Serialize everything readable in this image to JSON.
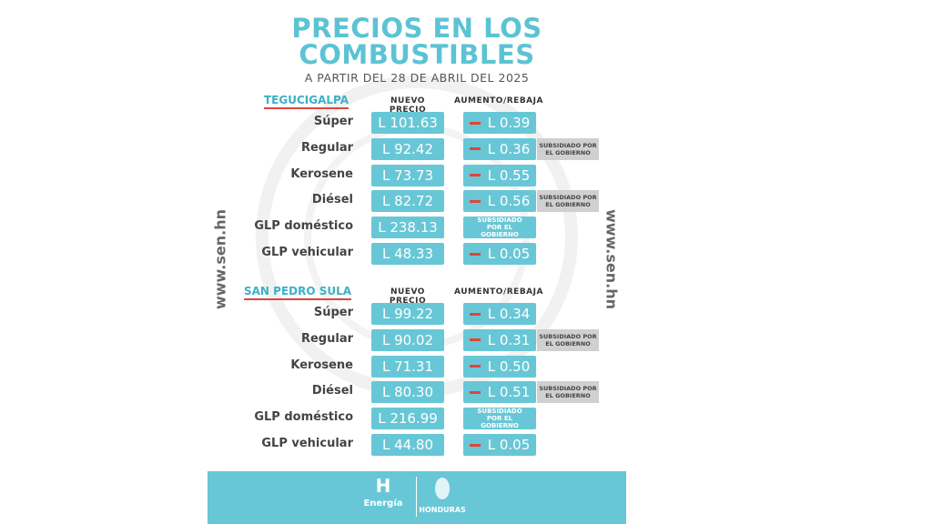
{
  "header": {
    "title_lines": [
      "PRECIOS EN LOS",
      "COMBUSTIBLES"
    ],
    "subtitle": "A PARTIR DEL 28 DE ABRIL DEL 2025"
  },
  "side_text": [
    "www.sen.hn",
    "www.sen.hn"
  ],
  "sections": [
    {
      "city": "TEGUCIGALPA",
      "price_header": "NUEVO PRECIO",
      "change_header": "AUMENTO/REBAJA",
      "rows": [
        {
          "fuel": "Súper",
          "price": "L 101.63",
          "change": "L 0.39"
        },
        {
          "fuel": "Regular",
          "price": "L 92.42",
          "change": "L 0.36",
          "note": "SUBSIDIADO POR EL GOBIERNO"
        },
        {
          "fuel": "Kerosene",
          "price": "L 73.73",
          "change": "L 0.55"
        },
        {
          "fuel": "Diésel",
          "price": "L 82.72",
          "change": "L 0.56",
          "note": "SUBSIDIADO POR EL GOBIERNO"
        },
        {
          "fuel": "GLP doméstico",
          "price": "L 238.13",
          "change_note": "SUBSIDIADO POR EL GOBIERNO"
        },
        {
          "fuel": "GLP vehicular",
          "price": "L 48.33",
          "change": "L 0.05"
        }
      ]
    },
    {
      "city": "SAN PEDRO SULA",
      "price_header": "NUEVO PRECIO",
      "change_header": "AUMENTO/REBAJA",
      "rows": [
        {
          "fuel": "Súper",
          "price": "L 99.22",
          "change": "L 0.34"
        },
        {
          "fuel": "Regular",
          "price": "L 90.02",
          "change": "L 0.31",
          "note": "SUBSIDIADO POR EL GOBIERNO"
        },
        {
          "fuel": "Kerosene",
          "price": "L 71.31",
          "change": "L 0.50"
        },
        {
          "fuel": "Diésel",
          "price": "L 80.30",
          "change": "L 0.51",
          "note": "SUBSIDIADO POR EL GOBIERNO"
        },
        {
          "fuel": "GLP doméstico",
          "price": "L 216.99",
          "change_note": "SUBSIDIADO POR EL GOBIERNO"
        },
        {
          "fuel": "GLP vehicular",
          "price": "L 44.80",
          "change": "L 0.05"
        }
      ]
    }
  ],
  "footer": {
    "left_logo_mark": "H",
    "left_logo": "Energía",
    "right_logo": "HONDURAS"
  }
}
